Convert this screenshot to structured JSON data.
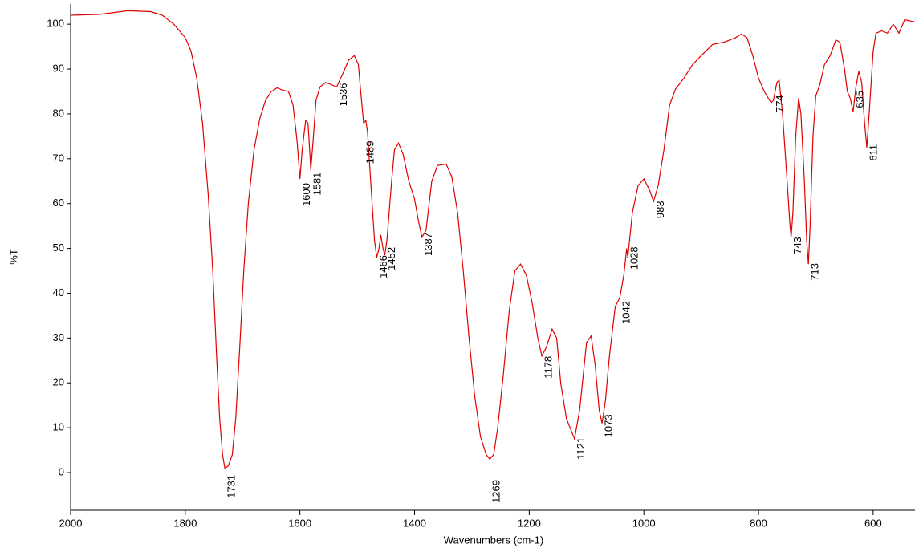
{
  "chart_data": {
    "type": "line",
    "x_label": "Wavenumbers (cm-1)",
    "y_label": "%T",
    "xlim": [
      2000,
      527
    ],
    "ylim": [
      -8.4,
      104.5
    ],
    "xticks": [
      2000,
      1800,
      1600,
      1400,
      1200,
      1000,
      800,
      600
    ],
    "yticks": [
      0,
      10,
      20,
      30,
      40,
      50,
      60,
      70,
      80,
      90,
      100
    ],
    "series": [
      {
        "color": "#e00000",
        "x": [
          2000,
          1950,
          1900,
          1860,
          1840,
          1820,
          1800,
          1790,
          1780,
          1770,
          1760,
          1752,
          1745,
          1740,
          1735,
          1731,
          1725,
          1718,
          1712,
          1705,
          1698,
          1690,
          1680,
          1670,
          1660,
          1650,
          1640,
          1630,
          1620,
          1612,
          1605,
          1600,
          1596,
          1590,
          1586,
          1583,
          1581,
          1577,
          1572,
          1565,
          1555,
          1545,
          1536,
          1525,
          1515,
          1505,
          1498,
          1494,
          1489,
          1485,
          1482,
          1475,
          1470,
          1466,
          1462,
          1459,
          1455,
          1452,
          1448,
          1440,
          1435,
          1428,
          1420,
          1410,
          1400,
          1393,
          1387,
          1380,
          1370,
          1360,
          1345,
          1335,
          1325,
          1315,
          1305,
          1295,
          1285,
          1275,
          1269,
          1262,
          1255,
          1245,
          1235,
          1225,
          1215,
          1205,
          1195,
          1185,
          1178,
          1170,
          1160,
          1152,
          1145,
          1135,
          1121,
          1112,
          1100,
          1092,
          1085,
          1078,
          1073,
          1067,
          1060,
          1050,
          1042,
          1035,
          1030,
          1028,
          1020,
          1010,
          1000,
          990,
          983,
          975,
          965,
          955,
          945,
          930,
          915,
          900,
          880,
          860,
          840,
          830,
          820,
          810,
          800,
          790,
          778,
          774,
          768,
          764,
          758,
          750,
          745,
          743,
          740,
          735,
          730,
          726,
          720,
          716,
          713,
          710,
          705,
          700,
          693,
          685,
          675,
          665,
          658,
          650,
          645,
          640,
          635,
          630,
          625,
          620,
          615,
          611,
          607,
          600,
          595,
          585,
          575,
          565,
          555,
          545,
          527
        ],
        "values": [
          102,
          102.2,
          103,
          102.8,
          102,
          100,
          97,
          94,
          88,
          78,
          62,
          45,
          25,
          12,
          4,
          1,
          1.5,
          4,
          12,
          28,
          45,
          60,
          72,
          79,
          83,
          85,
          85.8,
          85.3,
          85,
          82,
          74,
          65.5,
          72,
          78.5,
          78,
          72,
          67.5,
          74,
          83,
          86,
          87,
          86.5,
          86,
          89,
          92,
          93,
          91,
          85,
          78,
          78.5,
          76,
          62,
          52,
          48,
          50,
          53,
          50,
          48.5,
          52,
          65,
          72,
          73.5,
          71,
          65,
          61,
          56,
          52.5,
          54,
          65,
          68.5,
          68.8,
          66,
          58,
          45,
          30,
          17,
          8,
          4,
          3,
          4,
          10,
          22,
          36,
          45,
          46.5,
          44,
          38,
          30,
          26,
          28,
          32,
          30,
          20,
          12,
          7.5,
          14,
          29,
          30.5,
          24,
          14,
          11,
          16,
          26,
          37,
          39,
          44,
          50,
          48,
          58,
          64,
          65.5,
          63,
          60.5,
          64,
          72,
          82,
          85.5,
          88,
          91,
          93,
          95.5,
          96,
          97,
          97.8,
          97,
          93,
          88,
          85,
          82.5,
          83,
          87,
          87.5,
          80,
          65,
          55,
          52.5,
          58,
          75,
          83.5,
          80,
          65,
          52,
          46.5,
          55,
          75,
          84,
          86.5,
          91,
          93,
          96.5,
          96,
          90,
          85,
          83.5,
          80.5,
          86,
          89.5,
          87,
          78,
          72.5,
          80,
          94,
          98,
          98.5,
          98,
          100,
          98,
          101,
          100.5
        ]
      }
    ],
    "annotations": [
      {
        "text": "1731",
        "x": 1731,
        "y": -0.5
      },
      {
        "text": "1600",
        "x": 1600,
        "y": 64.6
      },
      {
        "text": "1581",
        "x": 1581,
        "y": 67
      },
      {
        "text": "1536",
        "x": 1536,
        "y": 86.9
      },
      {
        "text": "1489",
        "x": 1489,
        "y": 74
      },
      {
        "text": "1466",
        "x": 1466,
        "y": 48.5
      },
      {
        "text": "1452",
        "x": 1452,
        "y": 50.3
      },
      {
        "text": "1387",
        "x": 1387,
        "y": 53.5
      },
      {
        "text": "1269",
        "x": 1269,
        "y": -1.6
      },
      {
        "text": "1178",
        "x": 1178,
        "y": 26
      },
      {
        "text": "1121",
        "x": 1121,
        "y": 7.9
      },
      {
        "text": "1073",
        "x": 1073,
        "y": 13
      },
      {
        "text": "1042",
        "x": 1042,
        "y": 38.3
      },
      {
        "text": "1028",
        "x": 1028,
        "y": 50.4
      },
      {
        "text": "983",
        "x": 983,
        "y": 60.6
      },
      {
        "text": "774",
        "x": 774,
        "y": 84.2
      },
      {
        "text": "743",
        "x": 743,
        "y": 52.6
      },
      {
        "text": "713",
        "x": 713,
        "y": 46.7
      },
      {
        "text": "635",
        "x": 635,
        "y": 85.2
      },
      {
        "text": "611",
        "x": 611,
        "y": 73.2
      }
    ]
  }
}
